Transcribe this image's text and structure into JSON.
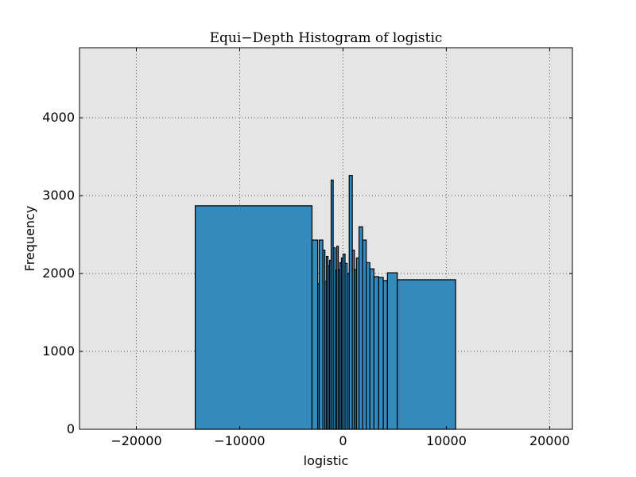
{
  "chart_data": {
    "type": "bar",
    "title": "Equi−Depth Histogram of logistic",
    "xlabel": "logistic",
    "ylabel": "Frequency",
    "xlim": [
      -25500,
      22200
    ],
    "ylim": [
      0,
      4900
    ],
    "xticks": [
      -20000,
      -10000,
      0,
      10000,
      20000
    ],
    "xtick_labels": [
      "−20000",
      "−10000",
      "0",
      "10000",
      "20000"
    ],
    "yticks": [
      0,
      1000,
      2000,
      3000,
      4000
    ],
    "ytick_labels": [
      "0",
      "1000",
      "2000",
      "3000",
      "4000"
    ],
    "grid": true,
    "colors": {
      "bar_fill": "#348ABD",
      "bar_edge": "#000000",
      "plot_bg": "#E5E5E5",
      "grid": "#555555"
    },
    "bins": [
      {
        "x0": -14300,
        "x1": -3000,
        "value": 2870
      },
      {
        "x0": -3000,
        "x1": -2450,
        "value": 2430
      },
      {
        "x0": -2450,
        "x1": -2300,
        "value": 1870
      },
      {
        "x0": -2300,
        "x1": -1950,
        "value": 2430
      },
      {
        "x0": -1950,
        "x1": -1750,
        "value": 2300
      },
      {
        "x0": -1750,
        "x1": -1600,
        "value": 1900
      },
      {
        "x0": -1600,
        "x1": -1450,
        "value": 2220
      },
      {
        "x0": -1450,
        "x1": -1300,
        "value": 2100
      },
      {
        "x0": -1300,
        "x1": -1150,
        "value": 2170
      },
      {
        "x0": -1150,
        "x1": -950,
        "value": 3200
      },
      {
        "x0": -950,
        "x1": -750,
        "value": 2330
      },
      {
        "x0": -750,
        "x1": -600,
        "value": 2040
      },
      {
        "x0": -600,
        "x1": -450,
        "value": 2350
      },
      {
        "x0": -450,
        "x1": -300,
        "value": 2050
      },
      {
        "x0": -300,
        "x1": -150,
        "value": 2140
      },
      {
        "x0": -150,
        "x1": 0,
        "value": 2200
      },
      {
        "x0": 0,
        "x1": 200,
        "value": 2250
      },
      {
        "x0": 200,
        "x1": 400,
        "value": 2130
      },
      {
        "x0": 400,
        "x1": 600,
        "value": 2000
      },
      {
        "x0": 600,
        "x1": 900,
        "value": 3260
      },
      {
        "x0": 900,
        "x1": 1100,
        "value": 2300
      },
      {
        "x0": 1100,
        "x1": 1300,
        "value": 2050
      },
      {
        "x0": 1300,
        "x1": 1550,
        "value": 2200
      },
      {
        "x0": 1550,
        "x1": 1900,
        "value": 2600
      },
      {
        "x0": 1900,
        "x1": 2250,
        "value": 2430
      },
      {
        "x0": 2250,
        "x1": 2600,
        "value": 2140
      },
      {
        "x0": 2600,
        "x1": 3000,
        "value": 2060
      },
      {
        "x0": 3000,
        "x1": 3450,
        "value": 1960
      },
      {
        "x0": 3450,
        "x1": 3900,
        "value": 1950
      },
      {
        "x0": 3900,
        "x1": 4300,
        "value": 1910
      },
      {
        "x0": 4300,
        "x1": 5250,
        "value": 2010
      },
      {
        "x0": 5250,
        "x1": 10900,
        "value": 1920
      }
    ]
  }
}
